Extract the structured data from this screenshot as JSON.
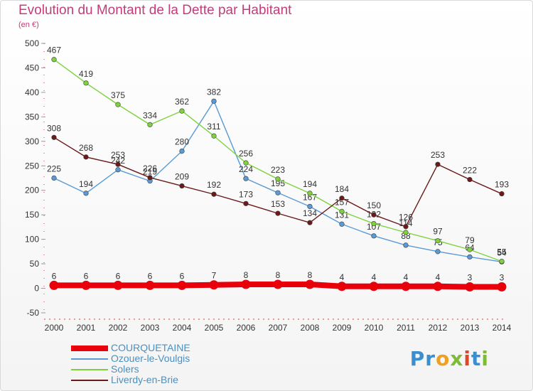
{
  "title": "Evolution du Montant de la Dette par Habitant",
  "unit_label": "(en €)",
  "logo_text": "Proxiti",
  "chart_data": {
    "type": "line",
    "title": "Evolution du Montant de la Dette par Habitant",
    "ylabel": "(en €)",
    "xlabel": "",
    "ylim": [
      -50,
      500
    ],
    "yticks": [
      -50,
      0,
      50,
      100,
      150,
      200,
      250,
      300,
      350,
      400,
      450,
      500
    ],
    "grid": false,
    "legend_position": "bottom-left",
    "categories": [
      "2000",
      "2001",
      "2002",
      "2003",
      "2004",
      "2005",
      "2006",
      "2007",
      "2008",
      "2009",
      "2010",
      "2011",
      "2012",
      "2013",
      "2014"
    ],
    "series": [
      {
        "name": "COURQUETAINE",
        "color": "#e8000b",
        "style": "thick",
        "values": [
          6,
          6,
          6,
          6,
          6,
          7,
          8,
          8,
          8,
          4,
          4,
          4,
          4,
          3,
          3
        ]
      },
      {
        "name": "Ozouer-le-Voulgis",
        "color": "#5b9bd5",
        "style": "normal",
        "values": [
          225,
          194,
          242,
          219,
          280,
          382,
          224,
          195,
          167,
          131,
          107,
          88,
          75,
          64,
          54
        ]
      },
      {
        "name": "Solers",
        "color": "#7ed33c",
        "style": "normal",
        "values": [
          467,
          419,
          375,
          334,
          362,
          311,
          256,
          223,
          194,
          157,
          132,
          114,
          97,
          79,
          55
        ]
      },
      {
        "name": "Liverdy-en-Brie",
        "color": "#6b1a1a",
        "style": "normal",
        "values": [
          308,
          268,
          253,
          226,
          209,
          192,
          173,
          153,
          134,
          184,
          150,
          126,
          253,
          222,
          193
        ]
      }
    ]
  }
}
